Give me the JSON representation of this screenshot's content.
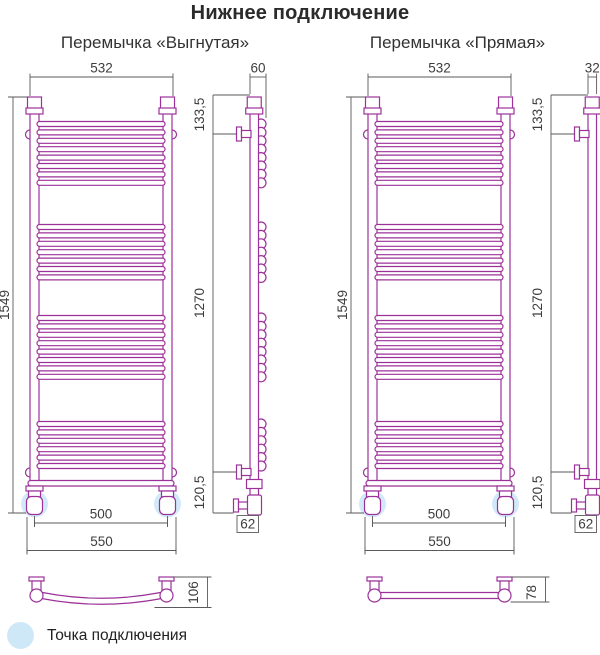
{
  "title": "Нижнее подключение",
  "legend": {
    "label": "Точка подключения"
  },
  "colors": {
    "tube": "#9c3199",
    "dimension_line": "#5a5a5a",
    "dimension_text": "#3d3d3d",
    "halo": "#cfe8f8"
  },
  "panels": [
    {
      "id": "curved",
      "label": "Перемычка «Выгнутая»",
      "jumper_style": "curved",
      "dimensions": {
        "bracket_span": "532",
        "depth": "60",
        "height": "1549",
        "top_offset": "133,5",
        "axle_span": "1270",
        "bottom_offset": "120,5",
        "connection_span": "500",
        "overall_width": "550",
        "valve_offset": "62",
        "jumper_height": "106"
      }
    },
    {
      "id": "straight",
      "label": "Перемычка «Прямая»",
      "jumper_style": "straight",
      "dimensions": {
        "bracket_span": "532",
        "depth": "32",
        "height": "1549",
        "top_offset": "133,5",
        "axle_span": "1270",
        "bottom_offset": "120,5",
        "connection_span": "500",
        "overall_width": "550",
        "valve_offset": "62",
        "jumper_height": "78"
      }
    }
  ]
}
